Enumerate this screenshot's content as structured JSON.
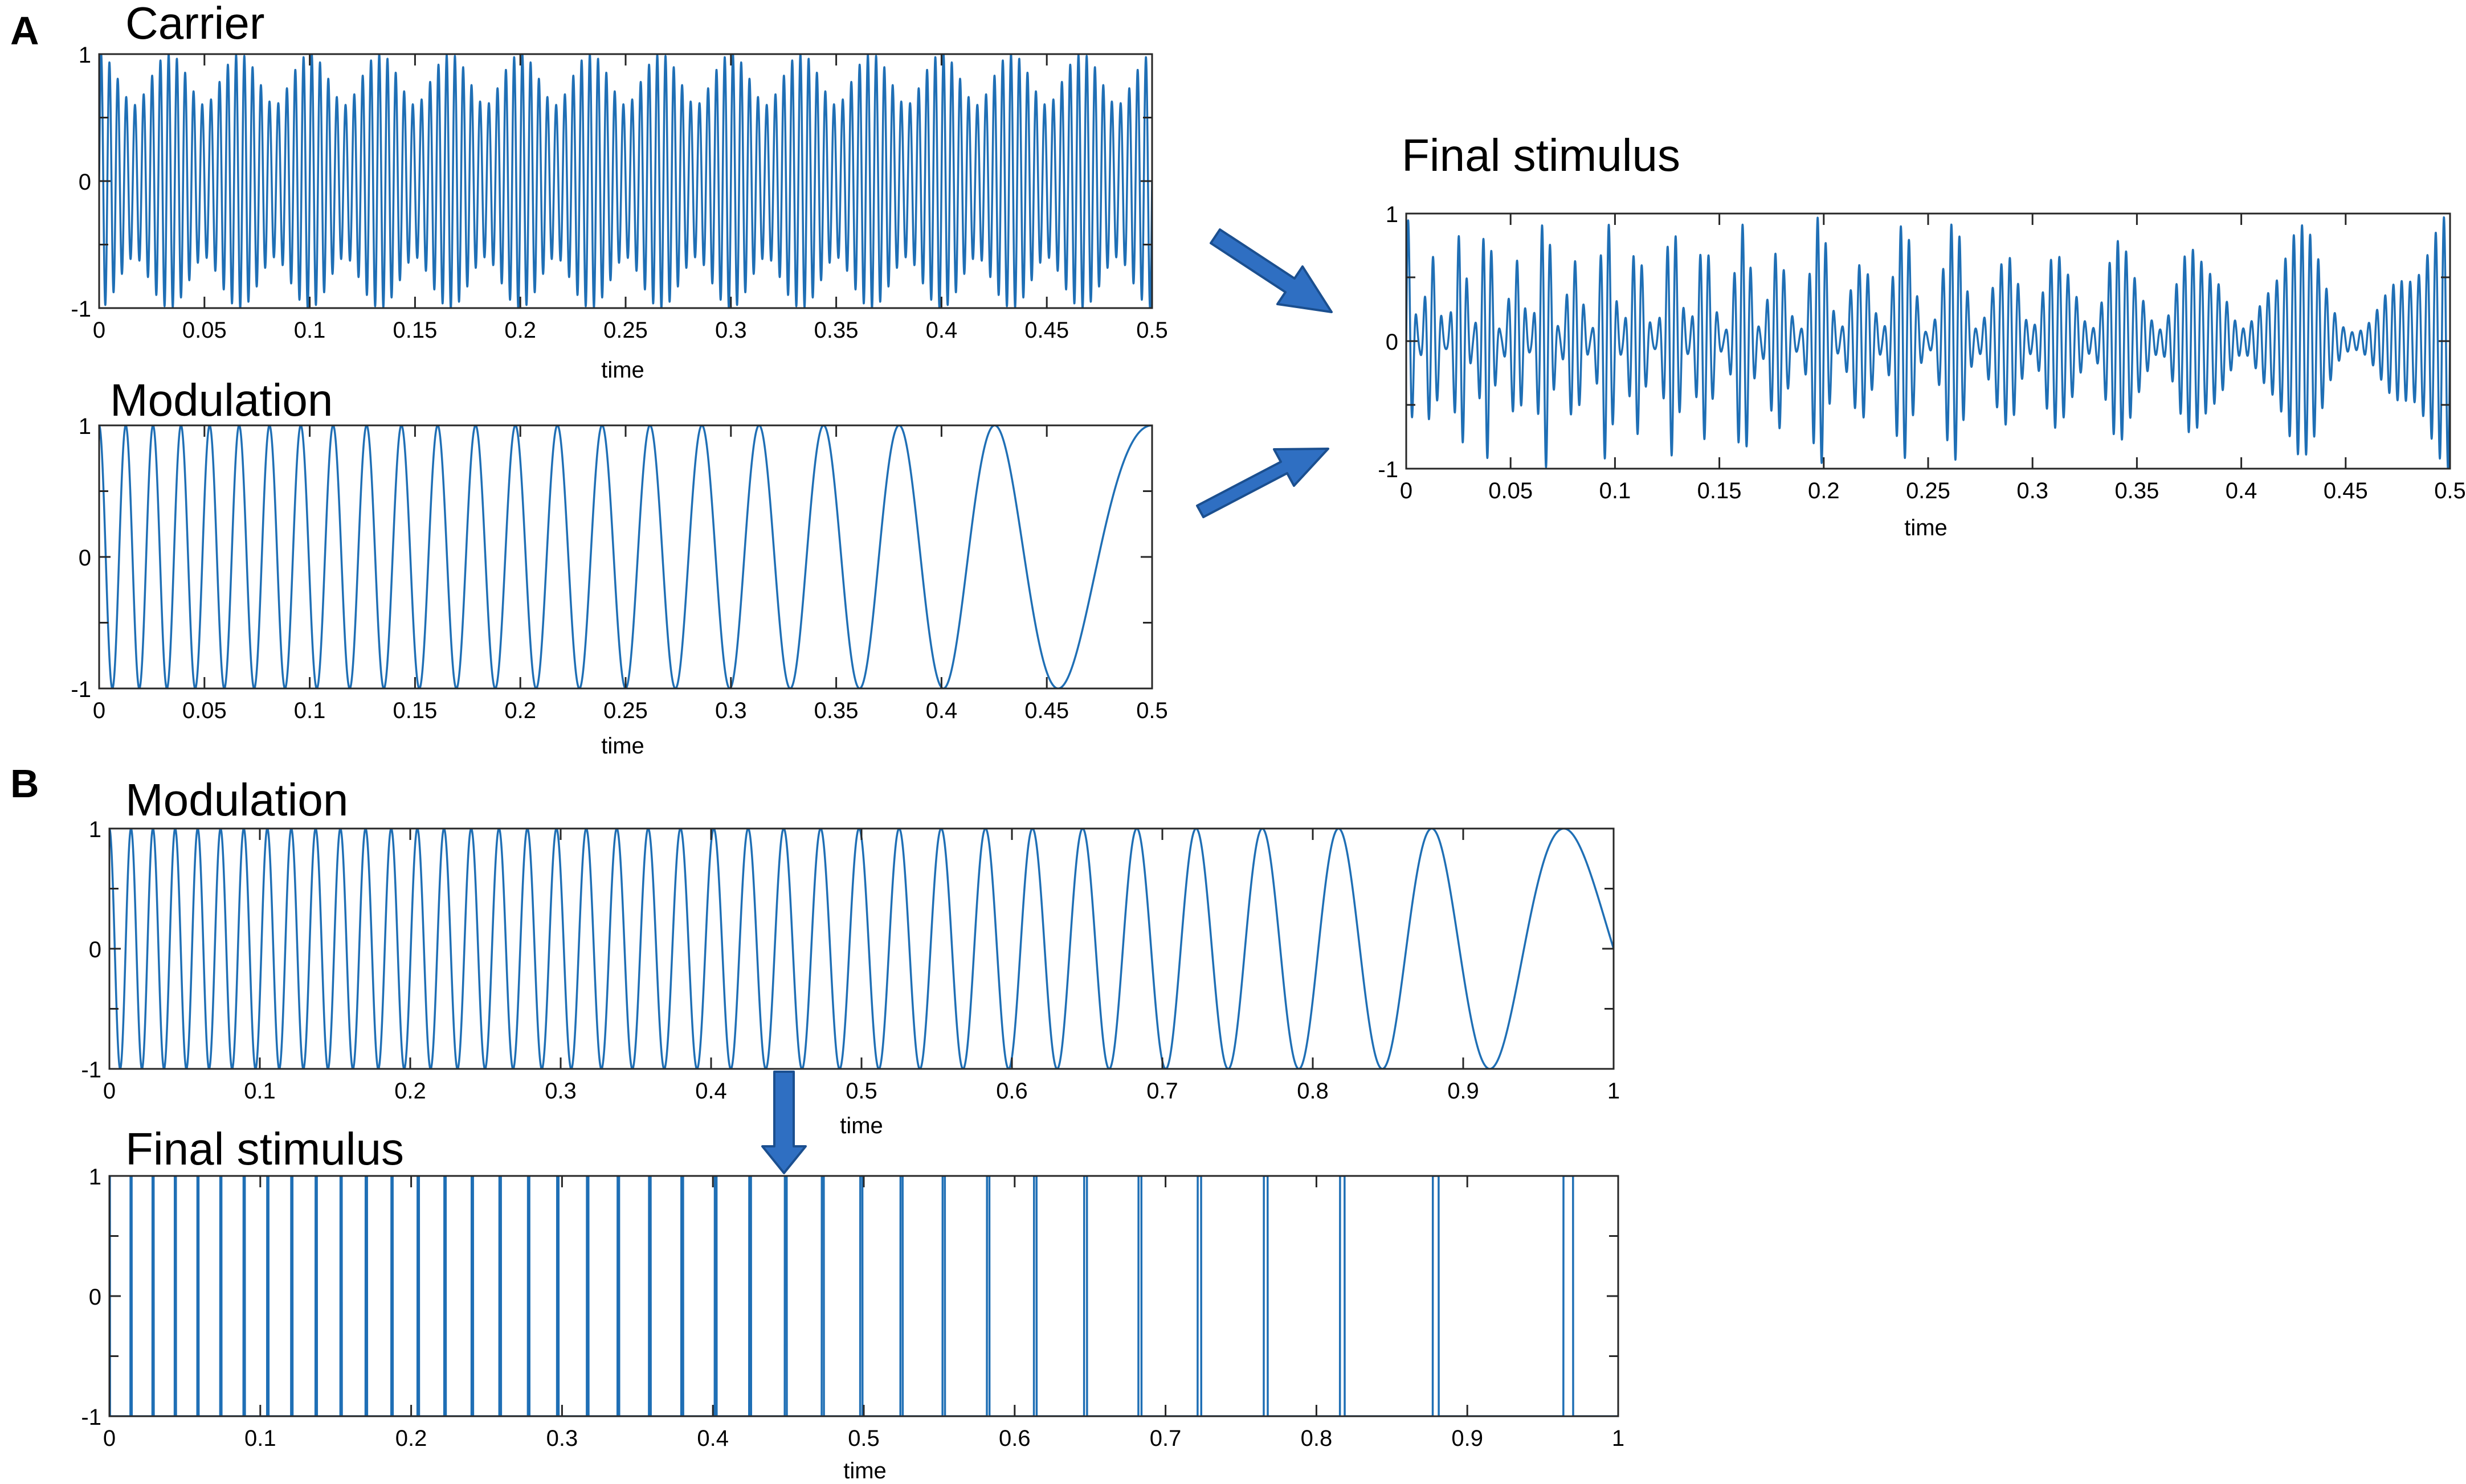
{
  "panel_labels": {
    "a": "A",
    "b": "B"
  },
  "line_color": "#1f6fb5",
  "arrow_color": "#2f6fc2",
  "chart_data": [
    {
      "id": "a-carrier",
      "type": "line",
      "title": "Carrier",
      "xlabel": "time",
      "ylabel": "",
      "xlim": [
        0,
        0.5
      ],
      "ylim": [
        -1,
        1
      ],
      "grid": false,
      "x_ticks": [
        0,
        0.05,
        0.1,
        0.15,
        0.2,
        0.25,
        0.3,
        0.35,
        0.4,
        0.45,
        0.5
      ],
      "x_tick_labels": [
        "0",
        "0.05",
        "0.1",
        "0.15",
        "0.2",
        "0.25",
        "0.3",
        "0.35",
        "0.4",
        "0.45",
        "0.5"
      ],
      "y_ticks": [
        -1,
        0,
        1
      ],
      "y_tick_labels": [
        "-1",
        "0",
        "1"
      ],
      "signal": {
        "kind": "carrier",
        "components": [
          {
            "freq_hz": 250,
            "amp": 0.8
          },
          {
            "freq_hz": 280,
            "amp": 0.2
          }
        ]
      }
    },
    {
      "id": "a-modulation",
      "type": "line",
      "title": "Modulation",
      "xlabel": "time",
      "ylabel": "",
      "xlim": [
        0,
        0.5
      ],
      "ylim": [
        -1,
        1
      ],
      "grid": false,
      "x_ticks": [
        0,
        0.05,
        0.1,
        0.15,
        0.2,
        0.25,
        0.3,
        0.35,
        0.4,
        0.45,
        0.5
      ],
      "x_tick_labels": [
        "0",
        "0.05",
        "0.1",
        "0.15",
        "0.2",
        "0.25",
        "0.3",
        "0.35",
        "0.4",
        "0.45",
        "0.5"
      ],
      "y_ticks": [
        -1,
        0,
        1
      ],
      "y_tick_labels": [
        "-1",
        "0",
        "1"
      ],
      "signal": {
        "kind": "chirp",
        "start_freq_hz": 80,
        "end_freq_hz": 8,
        "duration_s": 0.5
      }
    },
    {
      "id": "a-final",
      "type": "line",
      "title": "Final stimulus",
      "xlabel": "time",
      "ylabel": "",
      "xlim": [
        0,
        0.5
      ],
      "ylim": [
        -1,
        1
      ],
      "grid": false,
      "x_ticks": [
        0,
        0.05,
        0.1,
        0.15,
        0.2,
        0.25,
        0.3,
        0.35,
        0.4,
        0.45,
        0.5
      ],
      "x_tick_labels": [
        "0",
        "0.05",
        "0.1",
        "0.15",
        "0.2",
        "0.25",
        "0.3",
        "0.35",
        "0.4",
        "0.45",
        "0.5"
      ],
      "y_ticks": [
        -1,
        0,
        1
      ],
      "y_tick_labels": [
        "-1",
        "0",
        "1"
      ],
      "signal": {
        "kind": "modulated",
        "start_freq_hz": 80,
        "end_freq_hz": 8,
        "duration_s": 0.5,
        "components": [
          {
            "freq_hz": 250,
            "amp": 0.8
          },
          {
            "freq_hz": 280,
            "amp": 0.2
          }
        ]
      }
    },
    {
      "id": "b-modulation",
      "type": "line",
      "title": "Modulation",
      "xlabel": "time",
      "ylabel": "",
      "xlim": [
        0,
        1
      ],
      "ylim": [
        -1,
        1
      ],
      "grid": false,
      "x_ticks": [
        0,
        0.1,
        0.2,
        0.3,
        0.4,
        0.5,
        0.6,
        0.7,
        0.8,
        0.9,
        1
      ],
      "x_tick_labels": [
        "0",
        "0.1",
        "0.2",
        "0.3",
        "0.4",
        "0.5",
        "0.6",
        "0.7",
        "0.8",
        "0.9",
        "1"
      ],
      "y_ticks": [
        -1,
        0,
        1
      ],
      "y_tick_labels": [
        "-1",
        "0",
        "1"
      ],
      "signal": {
        "kind": "chirp",
        "start_freq_hz": 70,
        "end_freq_hz": 6.5,
        "duration_s": 1
      }
    },
    {
      "id": "b-final",
      "type": "line",
      "title": "Final stimulus",
      "xlabel": "time",
      "ylabel": "",
      "xlim": [
        0,
        1
      ],
      "ylim": [
        -1,
        1
      ],
      "grid": false,
      "x_ticks": [
        0,
        0.1,
        0.2,
        0.3,
        0.4,
        0.5,
        0.6,
        0.7,
        0.8,
        0.9,
        1
      ],
      "x_tick_labels": [
        "0",
        "0.1",
        "0.2",
        "0.3",
        "0.4",
        "0.5",
        "0.6",
        "0.7",
        "0.8",
        "0.9",
        "1"
      ],
      "y_ticks": [
        -1,
        0,
        1
      ],
      "y_tick_labels": [
        "-1",
        "0",
        "1"
      ],
      "signal": {
        "kind": "pulse_train",
        "start_freq_hz": 70,
        "end_freq_hz": 6.5,
        "duration_s": 1
      }
    }
  ]
}
